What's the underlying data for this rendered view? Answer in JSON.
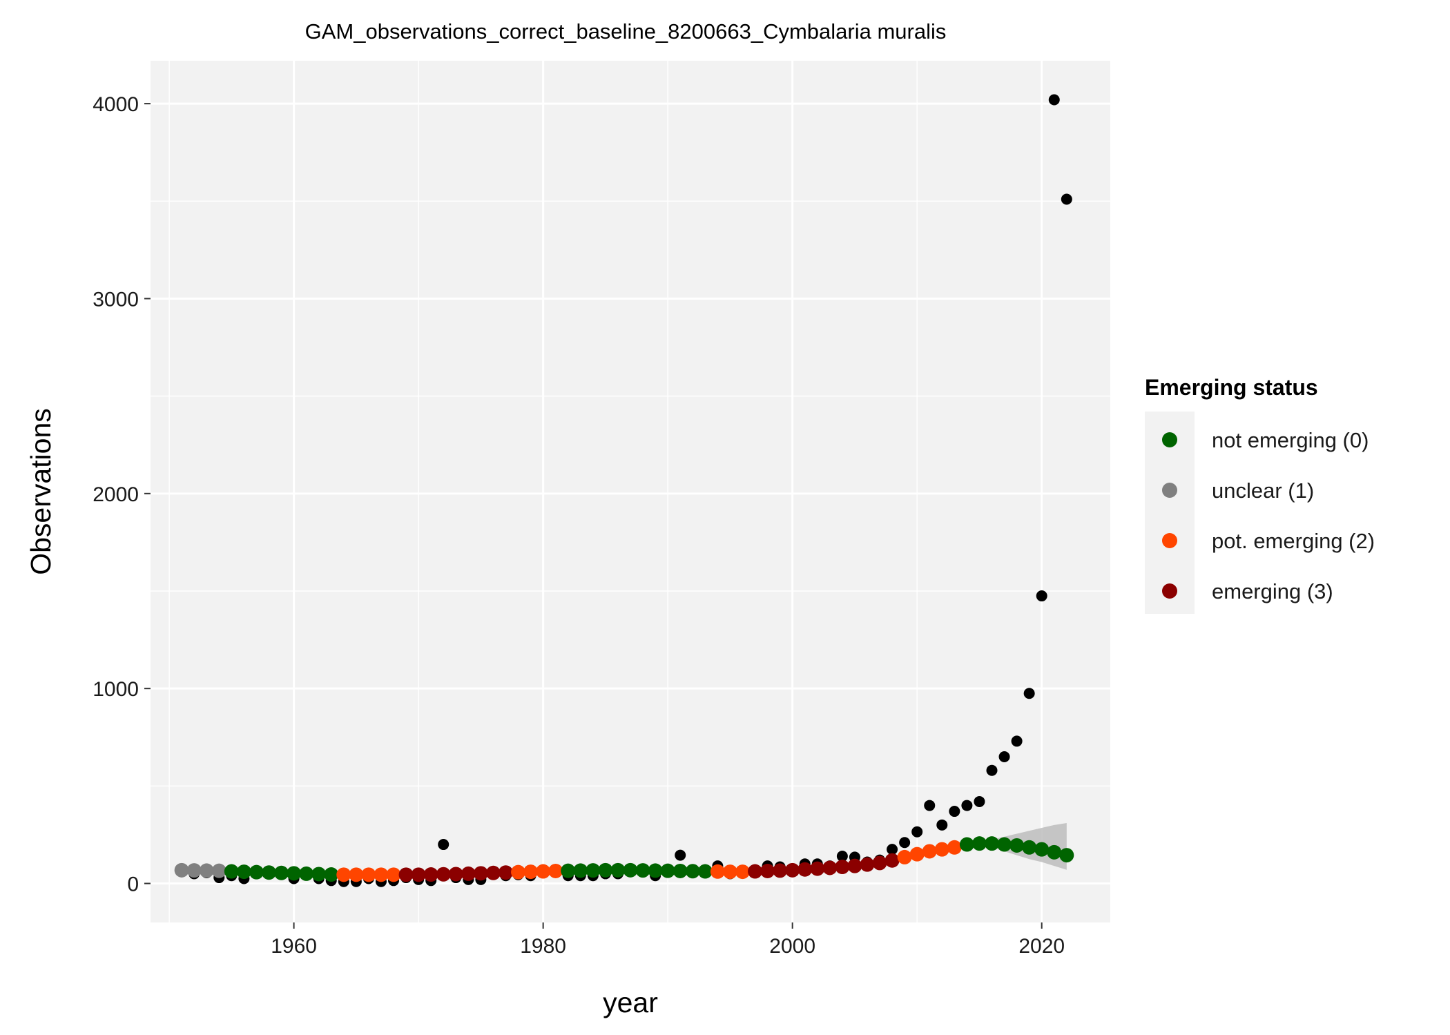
{
  "chart_data": {
    "type": "scatter",
    "title": "GAM_observations_correct_baseline_8200663_Cymbalaria muralis",
    "xlabel": "year",
    "ylabel": "Observations",
    "xlim": [
      1948.5,
      2025.5
    ],
    "ylim": [
      -200,
      4220
    ],
    "x_ticks": [
      1960,
      1980,
      2000,
      2020
    ],
    "y_ticks": [
      0,
      1000,
      2000,
      3000,
      4000
    ],
    "x_tick_labels": [
      "1960",
      "1980",
      "2000",
      "2020"
    ],
    "y_tick_labels": [
      "0",
      "1000",
      "2000",
      "3000",
      "4000"
    ],
    "grid": true,
    "legend": {
      "title": "Emerging status",
      "placement": "right",
      "items": [
        {
          "label": "not emerging (0)",
          "color": "#006400"
        },
        {
          "label": "unclear (1)",
          "color": "#808080"
        },
        {
          "label": "pot. emerging (2)",
          "color": "#ff4500"
        },
        {
          "label": "emerging (3)",
          "color": "#8b0000"
        }
      ]
    },
    "colors": {
      "observed": "#000000",
      "ribbon": "#bdbdbd",
      "panel": "#f2f2f2",
      "gridline": "#ffffff"
    },
    "observed": {
      "x": [
        1951,
        1952,
        1953,
        1954,
        1955,
        1956,
        1957,
        1958,
        1959,
        1960,
        1961,
        1962,
        1963,
        1964,
        1965,
        1966,
        1967,
        1968,
        1969,
        1970,
        1971,
        1972,
        1973,
        1974,
        1975,
        1976,
        1977,
        1978,
        1979,
        1980,
        1981,
        1982,
        1983,
        1984,
        1985,
        1986,
        1987,
        1988,
        1989,
        1990,
        1991,
        1992,
        1993,
        1994,
        1995,
        1996,
        1997,
        1998,
        1999,
        2000,
        2001,
        2002,
        2003,
        2004,
        2005,
        2006,
        2007,
        2008,
        2009,
        2010,
        2011,
        2012,
        2013,
        2014,
        2015,
        2016,
        2017,
        2018,
        2019,
        2020,
        2021,
        2022
      ],
      "y": [
        60,
        50,
        55,
        30,
        40,
        25,
        50,
        55,
        50,
        25,
        45,
        25,
        15,
        10,
        10,
        25,
        10,
        15,
        30,
        20,
        15,
        200,
        30,
        20,
        20,
        60,
        40,
        45,
        40,
        70,
        60,
        40,
        40,
        40,
        50,
        50,
        70,
        70,
        40,
        60,
        145,
        60,
        70,
        90,
        50,
        60,
        70,
        90,
        85,
        70,
        100,
        100,
        90,
        140,
        135,
        110,
        120,
        175,
        210,
        265,
        400,
        300,
        370,
        400,
        420,
        580,
        650,
        730,
        975,
        1475,
        4020,
        3510
      ]
    },
    "fitted": {
      "x": [
        1951,
        1952,
        1953,
        1954,
        1955,
        1956,
        1957,
        1958,
        1959,
        1960,
        1961,
        1962,
        1963,
        1964,
        1965,
        1966,
        1967,
        1968,
        1969,
        1970,
        1971,
        1972,
        1973,
        1974,
        1975,
        1976,
        1977,
        1978,
        1979,
        1980,
        1981,
        1982,
        1983,
        1984,
        1985,
        1986,
        1987,
        1988,
        1989,
        1990,
        1991,
        1992,
        1993,
        1994,
        1995,
        1996,
        1997,
        1998,
        1999,
        2000,
        2001,
        2002,
        2003,
        2004,
        2005,
        2006,
        2007,
        2008,
        2009,
        2010,
        2011,
        2012,
        2013,
        2014,
        2015,
        2016,
        2017,
        2018,
        2019,
        2020,
        2021,
        2022
      ],
      "y": [
        68,
        67,
        66,
        65,
        62,
        60,
        58,
        56,
        54,
        52,
        50,
        48,
        46,
        45,
        45,
        45,
        45,
        45,
        45,
        45,
        46,
        47,
        48,
        50,
        52,
        54,
        56,
        58,
        60,
        62,
        64,
        65,
        66,
        67,
        68,
        68,
        68,
        67,
        66,
        65,
        64,
        63,
        62,
        61,
        60,
        60,
        62,
        64,
        66,
        68,
        72,
        76,
        80,
        85,
        90,
        97,
        105,
        118,
        135,
        150,
        165,
        175,
        185,
        200,
        205,
        205,
        200,
        195,
        185,
        175,
        160,
        145
      ],
      "status": [
        1,
        1,
        1,
        1,
        0,
        0,
        0,
        0,
        0,
        0,
        0,
        0,
        0,
        2,
        2,
        2,
        2,
        2,
        3,
        3,
        3,
        3,
        3,
        3,
        3,
        3,
        3,
        2,
        2,
        2,
        2,
        0,
        0,
        0,
        0,
        0,
        0,
        0,
        0,
        0,
        0,
        0,
        0,
        2,
        2,
        2,
        3,
        3,
        3,
        3,
        3,
        3,
        3,
        3,
        3,
        3,
        3,
        3,
        2,
        2,
        2,
        2,
        2,
        0,
        0,
        0,
        0,
        0,
        0,
        0,
        0,
        0
      ]
    },
    "ribbon": {
      "x": [
        2013,
        2014,
        2015,
        2016,
        2017,
        2018,
        2019,
        2020,
        2021,
        2022
      ],
      "upper": [
        190,
        205,
        215,
        225,
        240,
        255,
        270,
        285,
        300,
        310
      ],
      "lower": [
        180,
        195,
        195,
        185,
        165,
        145,
        125,
        110,
        90,
        70
      ]
    }
  }
}
